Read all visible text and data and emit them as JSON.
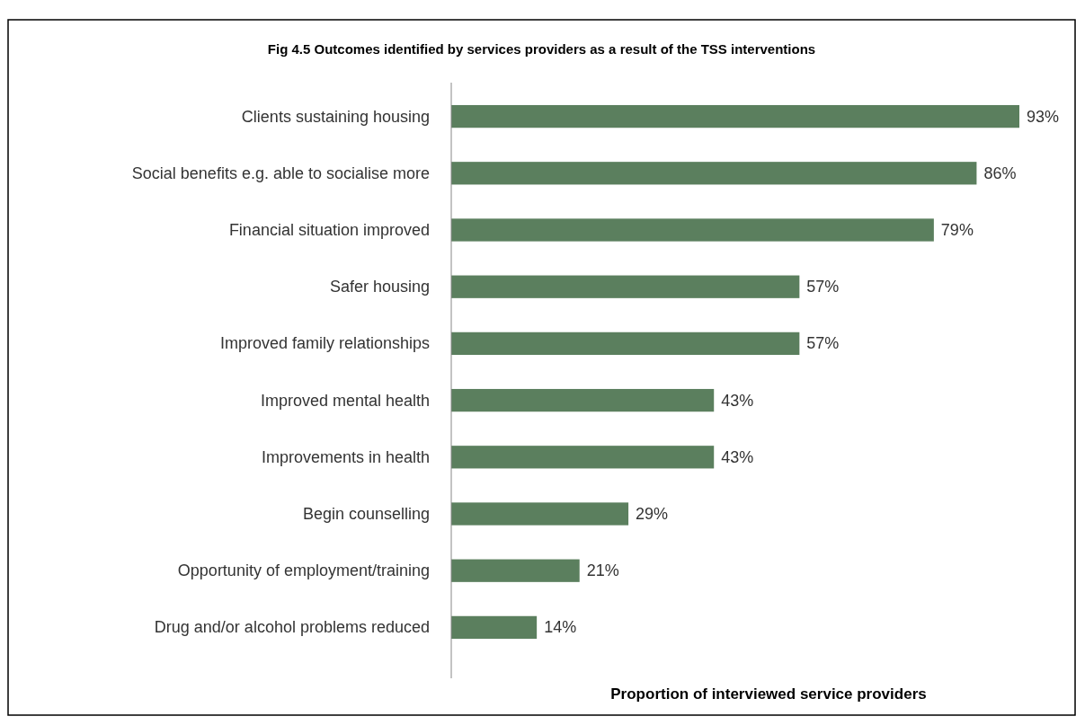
{
  "chart_data": {
    "type": "bar",
    "orientation": "horizontal",
    "title": "Fig 4.5 Outcomes identified by services providers as a result of the TSS interventions",
    "xlabel": "Proportion of interviewed service providers",
    "categories": [
      "Clients sustaining housing",
      "Social benefits e.g. able to socialise more",
      "Financial situation improved",
      "Safer housing",
      "Improved family relationships",
      "Improved mental health",
      "Improvements in health",
      "Begin counselling",
      "Opportunity of employment/training",
      "Drug and/or alcohol problems reduced"
    ],
    "values": [
      93,
      86,
      79,
      57,
      57,
      43,
      43,
      29,
      21,
      14
    ],
    "value_labels": [
      "93%",
      "86%",
      "79%",
      "57%",
      "57%",
      "43%",
      "43%",
      "29%",
      "21%",
      "14%"
    ],
    "color": "#5b7f5e",
    "tick_labels": "y"
  }
}
